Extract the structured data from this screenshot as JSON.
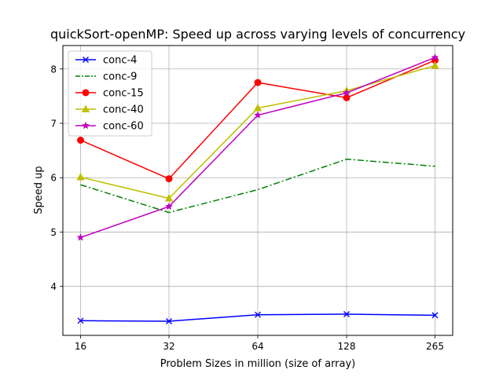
{
  "chart_data": {
    "type": "line",
    "title": "quickSort-openMP: Speed up across varying levels of concurrency",
    "xlabel": "Problem Sizes in million (size of array)",
    "ylabel": "Speed up",
    "categories": [
      "16",
      "32",
      "64",
      "128",
      "265"
    ],
    "ylim": [
      3.1,
      8.43
    ],
    "yticks": [
      4,
      5,
      6,
      7,
      8
    ],
    "grid": true,
    "legend_position": "top-left",
    "series": [
      {
        "name": "conc-4",
        "color": "#0000ff",
        "dash": "solid",
        "marker": "x",
        "values": [
          3.37,
          3.36,
          3.48,
          3.49,
          3.47
        ]
      },
      {
        "name": "conc-9",
        "color": "#008000",
        "dash": "dash-dot",
        "marker": "none",
        "values": [
          5.87,
          5.36,
          5.78,
          6.34,
          6.21
        ]
      },
      {
        "name": "conc-15",
        "color": "#ff0000",
        "dash": "solid",
        "marker": "circle",
        "values": [
          6.69,
          5.98,
          7.75,
          7.47,
          8.16
        ]
      },
      {
        "name": "conc-40",
        "color": "#bfbf00",
        "dash": "solid",
        "marker": "triangle",
        "values": [
          6.01,
          5.62,
          7.28,
          7.6,
          8.06
        ]
      },
      {
        "name": "conc-60",
        "color": "#bf00bf",
        "dash": "solid",
        "marker": "star",
        "values": [
          4.9,
          5.47,
          7.15,
          7.56,
          8.21
        ]
      }
    ]
  }
}
